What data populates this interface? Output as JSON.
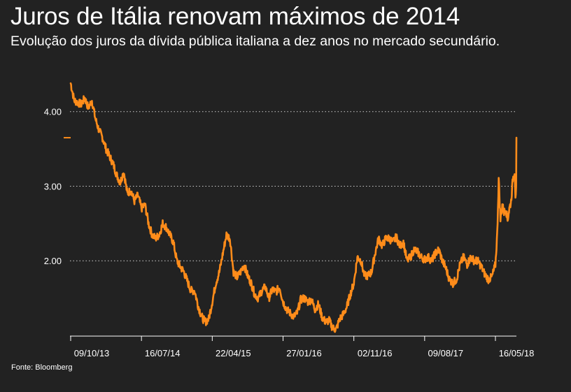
{
  "header": {
    "title": "Juros de Itália renovam máximos de 2014",
    "subtitle": "Evolução dos juros da dívida pública italiana a dez anos no mercado secundário."
  },
  "footer": {
    "source": "Fonte: Bloomberg"
  },
  "colors": {
    "background": "#222222",
    "line": "#ff8c1a",
    "grid": "#cfcfcf",
    "text": "#ffffff"
  },
  "chart_data": {
    "type": "line",
    "title": "Juros de Itália renovam máximos de 2014",
    "subtitle": "Evolução dos juros da dívida pública italiana a dez anos no mercado secundário.",
    "xlabel": "",
    "ylabel": "",
    "x_tick_labels": [
      "09/10/13",
      "16/07/14",
      "22/04/15",
      "27/01/16",
      "02/11/16",
      "09/08/17",
      "16/05/18"
    ],
    "x_tick_dates": [
      "2013-10-09",
      "2014-07-16",
      "2015-04-22",
      "2016-01-27",
      "2016-11-02",
      "2017-08-09",
      "2018-05-16"
    ],
    "y_tick_labels": [
      "2.00",
      "3.00",
      "4.00"
    ],
    "y_ticks": [
      2.0,
      3.0,
      4.0
    ],
    "xlim": [
      "2013-10-09",
      "2018-08-07"
    ],
    "ylim": [
      1.0,
      4.4
    ],
    "grid": "horizontal dotted",
    "legend": "none",
    "series": [
      {
        "values": [
          [
            "2013-10-09",
            4.38
          ],
          [
            "2013-10-23",
            4.15
          ],
          [
            "2013-11-06",
            4.12
          ],
          [
            "2013-11-20",
            4.1
          ],
          [
            "2013-12-04",
            4.18
          ],
          [
            "2013-12-18",
            4.05
          ],
          [
            "2014-01-01",
            4.15
          ],
          [
            "2014-01-15",
            3.9
          ],
          [
            "2014-01-29",
            3.75
          ],
          [
            "2014-02-12",
            3.65
          ],
          [
            "2014-02-26",
            3.5
          ],
          [
            "2014-03-12",
            3.4
          ],
          [
            "2014-03-26",
            3.3
          ],
          [
            "2014-04-09",
            3.15
          ],
          [
            "2014-04-23",
            3.05
          ],
          [
            "2014-05-07",
            3.2
          ],
          [
            "2014-05-21",
            2.9
          ],
          [
            "2014-06-04",
            2.95
          ],
          [
            "2014-06-18",
            2.8
          ],
          [
            "2014-07-02",
            2.88
          ],
          [
            "2014-07-16",
            2.7
          ],
          [
            "2014-07-30",
            2.75
          ],
          [
            "2014-08-13",
            2.5
          ],
          [
            "2014-08-27",
            2.35
          ],
          [
            "2014-09-10",
            2.3
          ],
          [
            "2014-09-24",
            2.35
          ],
          [
            "2014-10-08",
            2.5
          ],
          [
            "2014-10-22",
            2.45
          ],
          [
            "2014-11-05",
            2.35
          ],
          [
            "2014-11-19",
            2.25
          ],
          [
            "2014-12-03",
            2.0
          ],
          [
            "2014-12-17",
            1.92
          ],
          [
            "2014-12-31",
            1.85
          ],
          [
            "2015-01-14",
            1.72
          ],
          [
            "2015-01-28",
            1.6
          ],
          [
            "2015-02-11",
            1.6
          ],
          [
            "2015-02-25",
            1.4
          ],
          [
            "2015-03-11",
            1.25
          ],
          [
            "2015-03-25",
            1.18
          ],
          [
            "2015-04-08",
            1.22
          ],
          [
            "2015-04-22",
            1.45
          ],
          [
            "2015-05-06",
            1.7
          ],
          [
            "2015-05-20",
            1.85
          ],
          [
            "2015-06-03",
            2.1
          ],
          [
            "2015-06-17",
            2.35
          ],
          [
            "2015-07-01",
            2.3
          ],
          [
            "2015-07-15",
            1.85
          ],
          [
            "2015-07-29",
            1.78
          ],
          [
            "2015-08-12",
            1.85
          ],
          [
            "2015-08-26",
            1.95
          ],
          [
            "2015-09-09",
            1.8
          ],
          [
            "2015-09-23",
            1.7
          ],
          [
            "2015-10-07",
            1.55
          ],
          [
            "2015-10-21",
            1.5
          ],
          [
            "2015-11-04",
            1.6
          ],
          [
            "2015-11-18",
            1.65
          ],
          [
            "2015-12-02",
            1.5
          ],
          [
            "2015-12-16",
            1.62
          ],
          [
            "2015-12-30",
            1.58
          ],
          [
            "2016-01-13",
            1.65
          ],
          [
            "2016-01-27",
            1.45
          ],
          [
            "2016-02-10",
            1.35
          ],
          [
            "2016-02-24",
            1.3
          ],
          [
            "2016-03-09",
            1.25
          ],
          [
            "2016-03-23",
            1.3
          ],
          [
            "2016-04-06",
            1.48
          ],
          [
            "2016-04-20",
            1.5
          ],
          [
            "2016-05-04",
            1.45
          ],
          [
            "2016-05-18",
            1.48
          ],
          [
            "2016-06-01",
            1.35
          ],
          [
            "2016-06-15",
            1.42
          ],
          [
            "2016-06-29",
            1.25
          ],
          [
            "2016-07-13",
            1.18
          ],
          [
            "2016-07-27",
            1.2
          ],
          [
            "2016-08-10",
            1.1
          ],
          [
            "2016-08-24",
            1.08
          ],
          [
            "2016-09-07",
            1.22
          ],
          [
            "2016-09-21",
            1.28
          ],
          [
            "2016-10-05",
            1.38
          ],
          [
            "2016-10-19",
            1.55
          ],
          [
            "2016-11-02",
            1.7
          ],
          [
            "2016-11-16",
            2.05
          ],
          [
            "2016-11-30",
            2.0
          ],
          [
            "2016-12-14",
            1.8
          ],
          [
            "2016-12-28",
            1.8
          ],
          [
            "2017-01-11",
            1.85
          ],
          [
            "2017-01-25",
            2.1
          ],
          [
            "2017-02-08",
            2.3
          ],
          [
            "2017-02-22",
            2.2
          ],
          [
            "2017-03-08",
            2.3
          ],
          [
            "2017-03-22",
            2.3
          ],
          [
            "2017-04-05",
            2.25
          ],
          [
            "2017-04-19",
            2.32
          ],
          [
            "2017-05-03",
            2.2
          ],
          [
            "2017-05-17",
            2.25
          ],
          [
            "2017-05-31",
            2.0
          ],
          [
            "2017-06-14",
            2.05
          ],
          [
            "2017-06-28",
            2.15
          ],
          [
            "2017-07-12",
            2.12
          ],
          [
            "2017-07-26",
            2.05
          ],
          [
            "2017-08-09",
            2.02
          ],
          [
            "2017-08-23",
            2.05
          ],
          [
            "2017-09-06",
            2.0
          ],
          [
            "2017-09-20",
            2.1
          ],
          [
            "2017-10-04",
            2.15
          ],
          [
            "2017-10-18",
            2.0
          ],
          [
            "2017-11-01",
            1.9
          ],
          [
            "2017-11-15",
            1.75
          ],
          [
            "2017-11-29",
            1.7
          ],
          [
            "2017-12-13",
            1.75
          ],
          [
            "2017-12-27",
            1.95
          ],
          [
            "2018-01-10",
            2.05
          ],
          [
            "2018-01-24",
            1.95
          ],
          [
            "2018-02-07",
            2.05
          ],
          [
            "2018-02-21",
            2.0
          ],
          [
            "2018-03-07",
            2.0
          ],
          [
            "2018-03-21",
            1.92
          ],
          [
            "2018-04-04",
            1.82
          ],
          [
            "2018-04-18",
            1.75
          ],
          [
            "2018-05-02",
            1.78
          ],
          [
            "2018-05-16",
            1.95
          ],
          [
            "2018-05-23",
            2.35
          ],
          [
            "2018-05-29",
            3.1
          ],
          [
            "2018-06-05",
            2.55
          ],
          [
            "2018-06-12",
            2.75
          ],
          [
            "2018-06-19",
            2.65
          ],
          [
            "2018-06-26",
            2.7
          ],
          [
            "2018-07-03",
            2.55
          ],
          [
            "2018-07-10",
            2.7
          ],
          [
            "2018-07-17",
            2.8
          ],
          [
            "2018-07-24",
            3.1
          ],
          [
            "2018-07-31",
            3.2
          ],
          [
            "2018-08-03",
            2.88
          ],
          [
            "2018-08-06",
            2.95
          ],
          [
            "2018-08-07",
            3.65
          ]
        ]
      }
    ]
  }
}
